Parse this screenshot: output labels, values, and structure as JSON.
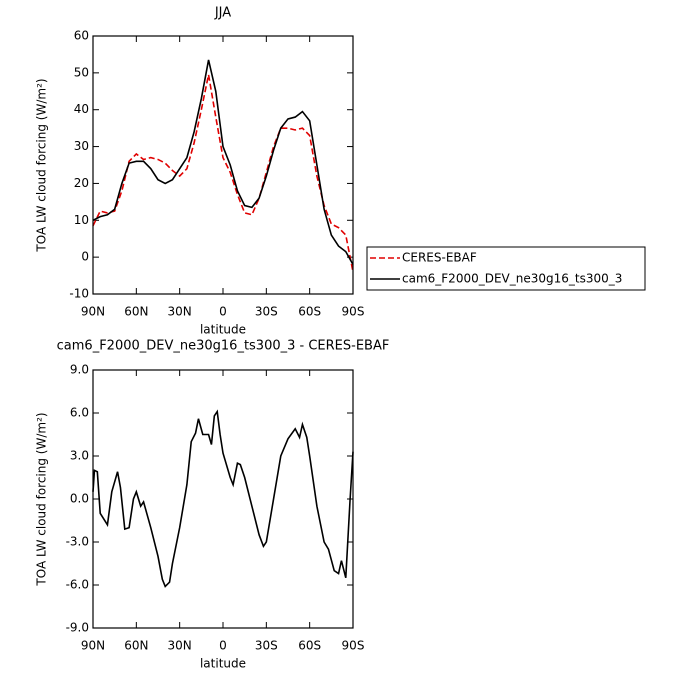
{
  "chart_data": [
    {
      "type": "line",
      "title": "JJA",
      "x_label": "latitude",
      "y_label": "TOA LW cloud forcing (W/m²)",
      "x": [
        90,
        85,
        80,
        75,
        70,
        65,
        60,
        55,
        50,
        45,
        40,
        35,
        30,
        25,
        20,
        15,
        10,
        5,
        0,
        -5,
        -10,
        -15,
        -20,
        -25,
        -30,
        -35,
        -40,
        -45,
        -50,
        -55,
        -60,
        -65,
        -70,
        -75,
        -80,
        -85,
        -90
      ],
      "series": [
        {
          "name": "CERES-EBAF",
          "color": "#e00000",
          "dash": true,
          "values": [
            8.5,
            12.5,
            12,
            12.5,
            18,
            26,
            28,
            26.5,
            27,
            26.5,
            25.5,
            23.5,
            22,
            24,
            31,
            40,
            49.5,
            38,
            27,
            23,
            17,
            12,
            11.5,
            16,
            23,
            30,
            35,
            35,
            34.5,
            35,
            33,
            22,
            14,
            9,
            8,
            6,
            -4
          ]
        },
        {
          "name": "cam6_F2000_DEV_ne30g16_ts300_3",
          "color": "#000000",
          "dash": false,
          "values": [
            10,
            11,
            11.5,
            13,
            20,
            25.5,
            26,
            26,
            24,
            21,
            20,
            21,
            24,
            27,
            34,
            43,
            53.5,
            45,
            30,
            25,
            18,
            14,
            13.5,
            16,
            22,
            29,
            35,
            37.5,
            38,
            39.5,
            37,
            25,
            13,
            6,
            3,
            1.5,
            -2
          ]
        }
      ],
      "xlim": [
        90,
        -90
      ],
      "xticks": [
        {
          "value": 90,
          "label": "90N"
        },
        {
          "value": 60,
          "label": "60N"
        },
        {
          "value": 30,
          "label": "30N"
        },
        0,
        {
          "value": -30,
          "label": "30S"
        },
        {
          "value": -60,
          "label": "60S"
        },
        {
          "value": -90,
          "label": "90S"
        }
      ],
      "ylim": [
        -10,
        60
      ],
      "yticks": [
        -10,
        0,
        10,
        20,
        30,
        40,
        50,
        60
      ]
    },
    {
      "type": "line",
      "title": "cam6_F2000_DEV_ne30g16_ts300_3 - CERES-EBAF",
      "x_label": "latitude",
      "y_label": "TOA LW cloud forcing (W/m²)",
      "x": [
        90,
        89,
        87,
        85,
        80,
        77,
        75,
        73,
        71,
        68,
        65,
        62,
        60,
        57,
        55,
        50,
        45,
        42,
        40,
        37,
        35,
        30,
        25,
        22,
        19,
        17,
        14,
        10,
        8,
        6,
        4,
        2,
        0,
        -5,
        -7,
        -10,
        -12,
        -15,
        -20,
        -25,
        -28,
        -30,
        -35,
        -40,
        -45,
        -50,
        -53,
        -55,
        -58,
        -60,
        -65,
        -70,
        -73,
        -77,
        -80,
        -82,
        -85,
        -88,
        -90
      ],
      "values": [
        0.5,
        2,
        1.9,
        -1,
        -1.8,
        0.5,
        1.2,
        1.9,
        0.8,
        -2.1,
        -2,
        0,
        0.5,
        -0.5,
        -0.2,
        -2,
        -4,
        -5.6,
        -6.1,
        -5.8,
        -4.5,
        -2,
        1,
        4,
        4.6,
        5.6,
        4.5,
        4.5,
        3.8,
        5.8,
        6.1,
        4.5,
        3.2,
        1.5,
        1,
        2.5,
        2.4,
        1.5,
        -0.5,
        -2.5,
        -3.3,
        -3,
        0,
        3,
        4.2,
        4.9,
        4.3,
        5.2,
        4.3,
        3,
        -0.5,
        -3,
        -3.5,
        -5,
        -5.2,
        -4.3,
        -5.5,
        0,
        3.3
      ],
      "color": "#000000",
      "xlim": [
        90,
        -90
      ],
      "xticks": [
        {
          "value": 90,
          "label": "90N"
        },
        {
          "value": 60,
          "label": "60N"
        },
        {
          "value": 30,
          "label": "30N"
        },
        0,
        {
          "value": -30,
          "label": "30S"
        },
        {
          "value": -60,
          "label": "60S"
        },
        {
          "value": -90,
          "label": "90S"
        }
      ],
      "ylim": [
        -9,
        9
      ],
      "yticks": [
        {
          "value": -9,
          "label": "-9.0"
        },
        {
          "value": -6,
          "label": "-6.0"
        },
        {
          "value": -3,
          "label": "-3.0"
        },
        {
          "value": 0,
          "label": "0.0"
        },
        {
          "value": 3,
          "label": "3.0"
        },
        {
          "value": 6,
          "label": "6.0"
        },
        {
          "value": 9,
          "label": "9.0"
        }
      ]
    }
  ]
}
